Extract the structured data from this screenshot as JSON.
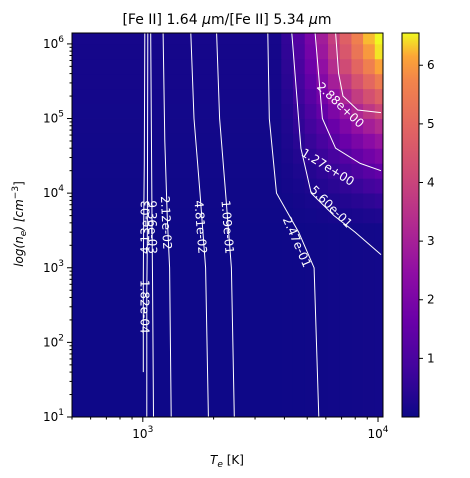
{
  "chart_data": {
    "type": "heatmap",
    "title_parts": [
      "[Fe II] 1.64 ",
      "μ",
      "m/[Fe II] 5.34 ",
      "μ",
      "m"
    ],
    "xlabel_parts": [
      "T",
      "e",
      " [K]"
    ],
    "ylabel_parts": [
      "log(n",
      "e",
      ") [cm",
      "−3",
      "]"
    ],
    "x_scale": "log",
    "y_scale": "log",
    "xlim": [
      500,
      10500
    ],
    "ylim": [
      10,
      1400000
    ],
    "x_ticks": [
      {
        "value": 1000,
        "base": "10",
        "exp": "3"
      },
      {
        "value": 10000,
        "base": "10",
        "exp": "4"
      }
    ],
    "y_ticks": [
      {
        "value": 10,
        "base": "10",
        "exp": "1"
      },
      {
        "value": 100,
        "base": "10",
        "exp": "2"
      },
      {
        "value": 1000,
        "base": "10",
        "exp": "3"
      },
      {
        "value": 10000,
        "base": "10",
        "exp": "4"
      },
      {
        "value": 100000,
        "base": "10",
        "exp": "5"
      },
      {
        "value": 1000000,
        "base": "10",
        "exp": "6"
      }
    ],
    "colormap": "plasma",
    "colorbar": {
      "min": 0.0,
      "max": 6.55,
      "ticks": [
        {
          "value": 1,
          "label": "1"
        },
        {
          "value": 2,
          "label": "2"
        },
        {
          "value": 3,
          "label": "3"
        },
        {
          "value": 4,
          "label": "4"
        },
        {
          "value": 5,
          "label": "5"
        },
        {
          "value": 6,
          "label": "6"
        }
      ]
    },
    "grid": {
      "x_edges": [
        500,
        3880,
        4350,
        4880,
        5470,
        6130,
        6870,
        7710,
        8640,
        9690,
        10500
      ],
      "y_edges": [
        10,
        4000,
        6300,
        10000,
        15800,
        25100,
        39800,
        63100,
        100000,
        158000,
        251000,
        398000,
        631000,
        1000000,
        1400000
      ],
      "values": [
        [
          0.02,
          0.03,
          0.03,
          0.04,
          0.05,
          0.06,
          0.07,
          0.08,
          0.09,
          0.1
        ],
        [
          0.03,
          0.05,
          0.08,
          0.1,
          0.12,
          0.15,
          0.18,
          0.21,
          0.25,
          0.28
        ],
        [
          0.04,
          0.08,
          0.12,
          0.17,
          0.22,
          0.28,
          0.35,
          0.42,
          0.5,
          0.58
        ],
        [
          0.05,
          0.12,
          0.18,
          0.27,
          0.36,
          0.46,
          0.57,
          0.7,
          0.85,
          0.98
        ],
        [
          0.06,
          0.15,
          0.25,
          0.38,
          0.52,
          0.68,
          0.86,
          1.07,
          1.3,
          1.5
        ],
        [
          0.07,
          0.2,
          0.34,
          0.52,
          0.72,
          0.95,
          1.22,
          1.52,
          1.8,
          2.05
        ],
        [
          0.08,
          0.25,
          0.44,
          0.68,
          0.95,
          1.27,
          1.63,
          2.0,
          2.35,
          2.65
        ],
        [
          0.09,
          0.3,
          0.55,
          0.85,
          1.2,
          1.62,
          2.08,
          2.55,
          2.95,
          3.3
        ],
        [
          0.1,
          0.35,
          0.65,
          1.05,
          1.52,
          2.05,
          2.6,
          3.15,
          3.65,
          4.05
        ],
        [
          0.11,
          0.4,
          0.78,
          1.28,
          1.85,
          2.5,
          3.15,
          3.8,
          4.35,
          4.8
        ],
        [
          0.12,
          0.45,
          0.9,
          1.5,
          2.2,
          2.95,
          3.7,
          4.4,
          5.0,
          5.5
        ],
        [
          0.13,
          0.5,
          1.0,
          1.7,
          2.5,
          3.35,
          4.2,
          4.95,
          5.6,
          6.1
        ],
        [
          0.13,
          0.55,
          1.1,
          1.85,
          2.75,
          3.65,
          4.55,
          5.35,
          6.0,
          6.45
        ],
        [
          0.14,
          0.58,
          1.18,
          1.95,
          2.9,
          3.85,
          4.8,
          5.6,
          6.25,
          6.55
        ]
      ]
    },
    "contours": [
      {
        "level_label": "1.82e-04",
        "points": [
          [
            1005,
            40
          ],
          [
            1005,
            700
          ],
          [
            1008,
            3000
          ],
          [
            1015,
            25000
          ],
          [
            1020,
            1400000
          ]
        ],
        "label_at": [
          1010,
          300
        ]
      },
      {
        "level_label": "4.13e-03",
        "points": [
          [
            1040,
            10
          ],
          [
            1040,
            500
          ],
          [
            1045,
            2000
          ],
          [
            1050,
            1400000
          ]
        ],
        "label_at": [
          1030,
          3500
        ]
      },
      {
        "level_label": "9.36e-03",
        "points": [
          [
            1110,
            10
          ],
          [
            1100,
            800
          ],
          [
            1095,
            3000
          ],
          [
            1080,
            1400000
          ]
        ],
        "label_at": [
          1090,
          3500
        ]
      },
      {
        "level_label": "2.12e-02",
        "points": [
          [
            1320,
            10
          ],
          [
            1300,
            1000
          ],
          [
            1270,
            5000
          ],
          [
            1240,
            50000
          ],
          [
            1220,
            1400000
          ]
        ],
        "label_at": [
          1250,
          4000
        ]
      },
      {
        "level_label": "4.81e-02",
        "points": [
          [
            1900,
            10
          ],
          [
            1850,
            1000
          ],
          [
            1750,
            10000
          ],
          [
            1650,
            100000
          ],
          [
            1600,
            1400000
          ]
        ],
        "label_at": [
          1750,
          3500
        ]
      },
      {
        "level_label": "1.09e-01",
        "points": [
          [
            2450,
            10
          ],
          [
            2380,
            1000
          ],
          [
            2250,
            10000
          ],
          [
            2120,
            100000
          ],
          [
            2060,
            1400000
          ]
        ],
        "label_at": [
          2280,
          3500
        ]
      },
      {
        "level_label": "2.47e-01",
        "points": [
          [
            5600,
            10
          ],
          [
            5350,
            1000
          ],
          [
            4600,
            3000
          ],
          [
            3700,
            10000
          ],
          [
            3450,
            100000
          ],
          [
            3400,
            1400000
          ]
        ],
        "label_at": [
          4500,
          2200
        ]
      },
      {
        "level_label": "5.60e-01",
        "points": [
          [
            10300,
            1500
          ],
          [
            8000,
            3000
          ],
          [
            6500,
            5000
          ],
          [
            5200,
            10000
          ],
          [
            4700,
            40000
          ],
          [
            4300,
            1400000
          ]
        ],
        "label_at": [
          6300,
          6500
        ]
      },
      {
        "level_label": "1.27e+00",
        "points": [
          [
            10300,
            20000
          ],
          [
            8400,
            25000
          ],
          [
            6600,
            40000
          ],
          [
            5800,
            100000
          ],
          [
            5400,
            1400000
          ]
        ],
        "label_at": [
          6100,
          22000
        ]
      },
      {
        "level_label": "2.88e+00",
        "points": [
          [
            10300,
            120000
          ],
          [
            8200,
            130000
          ],
          [
            7100,
            200000
          ],
          [
            6800,
            400000
          ],
          [
            6600,
            1400000
          ]
        ],
        "label_at": [
          6900,
          150000
        ]
      }
    ]
  }
}
